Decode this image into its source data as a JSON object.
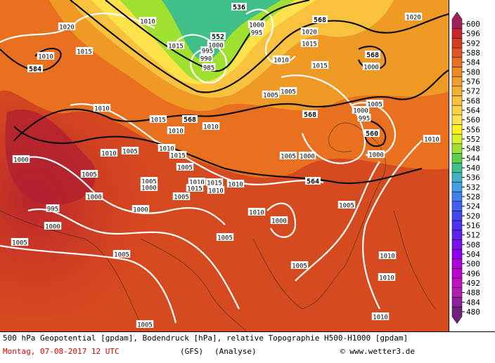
{
  "map": {
    "geopotential_labels": [
      "584",
      "552",
      "536",
      "568",
      "568",
      "568",
      "568",
      "560",
      "564"
    ],
    "isobar_labels": [
      "1020",
      "1010",
      "1015",
      "1010",
      "1015",
      "995",
      "990",
      "985",
      "1000",
      "1000",
      "995",
      "1020",
      "1015",
      "1010",
      "1015",
      "1005",
      "1005",
      "1000",
      "1005",
      "1000",
      "995",
      "1000",
      "1010",
      "1020",
      "1010",
      "1015",
      "1010",
      "1010",
      "1010",
      "1005",
      "1010",
      "1015",
      "1005",
      "1000",
      "1005",
      "1005",
      "1000",
      "1010",
      "1015",
      "1015",
      "1010",
      "1010",
      "1000",
      "1005",
      "1000",
      "995",
      "1000",
      "1010",
      "1000",
      "1005",
      "1005",
      "1000",
      "1005",
      "1005",
      "1005",
      "1005",
      "1010",
      "1010",
      "1010",
      "1005"
    ]
  },
  "colorbar": {
    "labels": [
      600,
      596,
      592,
      588,
      584,
      580,
      576,
      572,
      568,
      564,
      560,
      556,
      552,
      548,
      544,
      540,
      536,
      532,
      528,
      524,
      520,
      516,
      512,
      508,
      504,
      500,
      496,
      492,
      488,
      484,
      480
    ],
    "colors": [
      "#a0205a",
      "#c8282a",
      "#d83c20",
      "#e05522",
      "#e8701e",
      "#ee8a20",
      "#f29e28",
      "#f5b030",
      "#f8c23e",
      "#fcd244",
      "#fee24c",
      "#fff020",
      "#d8f028",
      "#a0e030",
      "#60d048",
      "#40c088",
      "#40b0c8",
      "#40a0e8",
      "#4080f0",
      "#4060f0",
      "#4444f0",
      "#5030f0",
      "#6020f0",
      "#7810f0",
      "#9000f0",
      "#b000e0",
      "#c000d0",
      "#c010c0",
      "#b020b0",
      "#9020a0",
      "#702080"
    ]
  },
  "footer": {
    "description": "500 hPa Geopotential [gpdam], Bodendruck [hPa], relative Topographie H500-H1000 [gpdam]",
    "date": "Montag, 07-08-2017  12 UTC",
    "model": "(GFS)",
    "analysis": "(Analyse)",
    "copyright": "© www.wetter3.de"
  }
}
